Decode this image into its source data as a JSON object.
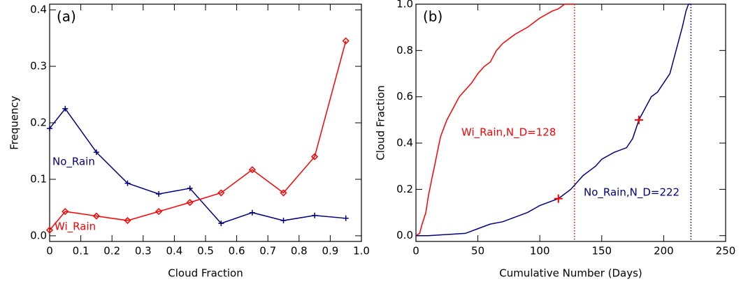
{
  "chart_data": [
    {
      "type": "line",
      "title": "(a)",
      "xlabel": "Cloud Fraction",
      "ylabel": "Frequency",
      "xlim": [
        0,
        1
      ],
      "xticks": [
        0,
        0.1,
        0.2,
        0.3,
        0.4,
        0.5,
        0.6,
        0.7,
        0.8,
        0.9,
        {
          "value": 1,
          "label": "1.0"
        }
      ],
      "ylim": [
        -0.01,
        0.41
      ],
      "yticks": [
        {
          "value": 0,
          "label": "0.0"
        },
        0.1,
        0.2,
        0.3,
        0.4
      ],
      "series": [
        {
          "name": "No_Rain",
          "color": "#000080",
          "marker": "plus",
          "x": [
            0,
            0.05,
            0.15,
            0.25,
            0.35,
            0.45,
            0.55,
            0.65,
            0.75,
            0.85,
            0.95
          ],
          "values": [
            0.19,
            0.225,
            0.148,
            0.093,
            0.074,
            0.084,
            0.022,
            0.041,
            0.027,
            0.036,
            0.031
          ]
        },
        {
          "name": "Wi_Rain",
          "color": "#ff0000",
          "marker": "diamond",
          "x": [
            0,
            0.05,
            0.15,
            0.25,
            0.35,
            0.45,
            0.55,
            0.65,
            0.75,
            0.85,
            0.95
          ],
          "values": [
            0.01,
            0.043,
            0.035,
            0.027,
            0.043,
            0.059,
            0.076,
            0.117,
            0.076,
            0.14,
            0.345
          ]
        }
      ]
    },
    {
      "type": "line",
      "title": "(b)",
      "xlabel": "Cumulative Number (Days)",
      "ylabel": "Cloud Fraction",
      "xlim": [
        0,
        250
      ],
      "xticks": [
        0,
        50,
        100,
        150,
        200,
        250
      ],
      "ylim": [
        -0.025,
        1.0
      ],
      "yticks": [
        {
          "value": 0,
          "label": "0.0"
        },
        0.2,
        0.4,
        0.6,
        0.8,
        {
          "value": 1,
          "label": "1.0"
        }
      ],
      "series": [
        {
          "name": "Wi_Rain,N_D=128",
          "color": "#ff0000",
          "x": [
            0,
            3,
            5,
            8,
            10,
            13,
            15,
            18,
            20,
            25,
            30,
            35,
            40,
            45,
            50,
            55,
            60,
            65,
            70,
            75,
            80,
            90,
            100,
            110,
            115,
            120,
            128
          ],
          "values": [
            0,
            0.01,
            0.05,
            0.1,
            0.17,
            0.25,
            0.3,
            0.38,
            0.43,
            0.5,
            0.55,
            0.6,
            0.63,
            0.66,
            0.7,
            0.73,
            0.75,
            0.8,
            0.83,
            0.85,
            0.87,
            0.9,
            0.94,
            0.97,
            0.98,
            1.0,
            1.0
          ]
        },
        {
          "name": "No_Rain,N_D=222",
          "color": "#000080",
          "x": [
            0,
            10,
            40,
            50,
            60,
            70,
            80,
            90,
            100,
            110,
            115,
            120,
            125,
            130,
            135,
            140,
            145,
            150,
            160,
            170,
            175,
            180,
            185,
            190,
            195,
            200,
            205,
            210,
            215,
            218,
            220,
            222
          ],
          "values": [
            0,
            0,
            0.01,
            0.03,
            0.05,
            0.06,
            0.08,
            0.1,
            0.13,
            0.15,
            0.16,
            0.18,
            0.2,
            0.23,
            0.26,
            0.28,
            0.3,
            0.33,
            0.36,
            0.38,
            0.42,
            0.5,
            0.55,
            0.6,
            0.62,
            0.66,
            0.7,
            0.8,
            0.9,
            0.97,
            1.0,
            1.0
          ]
        }
      ],
      "vlines": [
        {
          "x": 128,
          "color": "#ff0000"
        },
        {
          "x": 222,
          "color": "#000080"
        }
      ],
      "points": {
        "x": [
          115,
          180
        ],
        "values": [
          0.16,
          0.5
        ],
        "color": "#ff0000"
      }
    }
  ]
}
